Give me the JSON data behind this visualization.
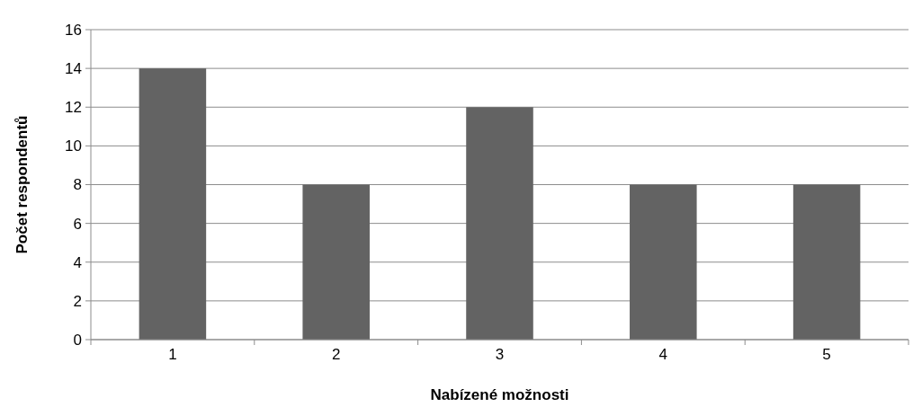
{
  "chart_data": {
    "type": "bar",
    "xlabel": "Nabízené možnosti",
    "ylabel": "Počet respondentů",
    "categories": [
      "1",
      "2",
      "3",
      "4",
      "5"
    ],
    "values": [
      14,
      8,
      12,
      8,
      8
    ],
    "color": "#636363",
    "ylim": [
      0,
      16
    ],
    "yticks": [
      0,
      2,
      4,
      6,
      8,
      10,
      12,
      14,
      16
    ],
    "grid": "y"
  }
}
